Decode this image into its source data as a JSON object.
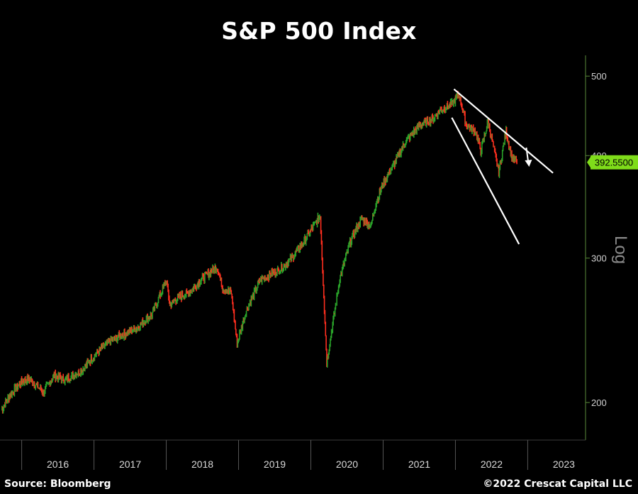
{
  "header": {
    "title": "S&P 500 Index"
  },
  "footer": {
    "source": "Source: Bloomberg",
    "copyright": "©2022 Crescat Capital LLC"
  },
  "chart_data": {
    "type": "line",
    "title": "S&P 500 Index",
    "yscale": "log",
    "scale_label": "Log",
    "y_ticks": [
      200,
      300,
      400,
      500
    ],
    "y_tick_labels": [
      "200",
      "300",
      "400",
      "500"
    ],
    "ylim": [
      180,
      530
    ],
    "x_ticks": [
      "2016",
      "2017",
      "2018",
      "2019",
      "2020",
      "2021",
      "2022",
      "2023"
    ],
    "xlim": [
      2015.7,
      2023.8
    ],
    "last_value_label": "392.5500",
    "last_value": 392.55,
    "colors": {
      "up": "#2aa52a",
      "down": "#ff2e1f",
      "axis": "#5a8a3a",
      "last_value_bg": "#7fdc1a",
      "trendline": "#ffffff"
    },
    "series": [
      {
        "x": [
          2015.72,
          2015.85,
          2016.0,
          2016.1,
          2016.3,
          2016.45,
          2016.6,
          2016.8,
          2016.85,
          2017.0,
          2017.2,
          2017.4,
          2017.6,
          2017.8,
          2018.0,
          2018.05,
          2018.15,
          2018.3,
          2018.5,
          2018.7,
          2018.78,
          2018.9,
          2018.98,
          2019.1,
          2019.3,
          2019.4,
          2019.6,
          2019.75,
          2019.9,
          2020.13,
          2020.22,
          2020.4,
          2020.55,
          2020.7,
          2020.83,
          2020.9,
          2021.0,
          2021.15,
          2021.3,
          2021.5,
          2021.7,
          2021.8,
          2021.95,
          2022.05,
          2022.15,
          2022.28,
          2022.35,
          2022.45,
          2022.6,
          2022.7,
          2022.78,
          2022.85
        ],
        "y": [
          196,
          205,
          212,
          214,
          206,
          216,
          213,
          218,
          220,
          228,
          237,
          242,
          247,
          256,
          282,
          263,
          268,
          272,
          283,
          293,
          276,
          272,
          236,
          258,
          282,
          285,
          292,
          301,
          314,
          338,
          224,
          283,
          315,
          335,
          328,
          350,
          370,
          390,
          415,
          435,
          444,
          455,
          462,
          475,
          436,
          428,
          405,
          440,
          382,
          428,
          398,
          392.55
        ]
      }
    ],
    "trendlines": [
      {
        "x": [
          2021.98,
          2023.35
        ],
        "y": [
          482,
          381
        ]
      },
      {
        "x": [
          2021.95,
          2022.88
        ],
        "y": [
          445,
          312
        ]
      }
    ],
    "annotations": [
      {
        "type": "arrow-down",
        "x": 2023.0,
        "y": 390
      }
    ]
  }
}
